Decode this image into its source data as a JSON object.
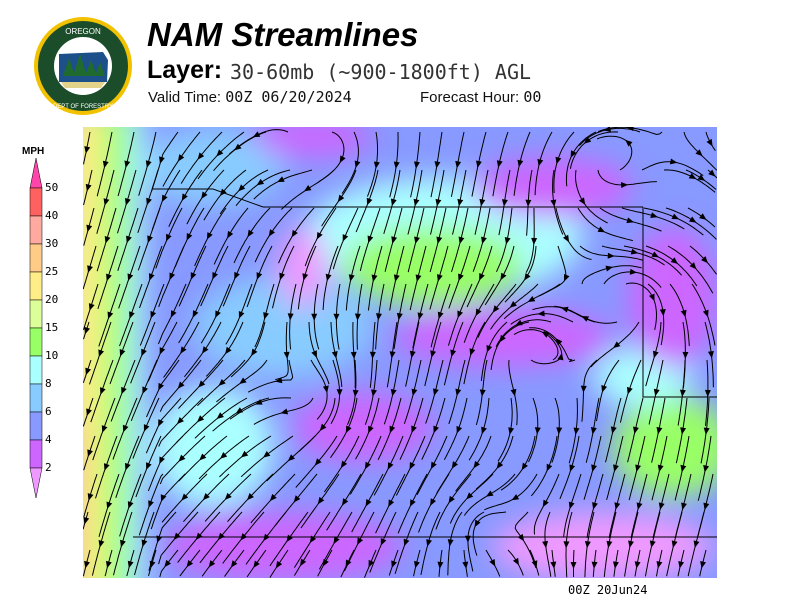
{
  "header": {
    "logo_text": "OREGON DEPARTMENT OF FORESTRY",
    "title": "NAM Streamlines",
    "layer_label": "Layer:",
    "layer_value": "30-60mb (~900-1800ft) AGL",
    "valid_label": "Valid Time:",
    "valid_value": "00Z 06/20/2024",
    "forecast_label": "Forecast Hour:",
    "forecast_value": "00"
  },
  "legend": {
    "title": "MPH",
    "ticks": [
      "50",
      "40",
      "30",
      "25",
      "20",
      "15",
      "10",
      "8",
      "6",
      "4",
      "2"
    ],
    "colors": [
      "#ff44aa",
      "#ff6060",
      "#ffaaa0",
      "#ffcc88",
      "#ffee88",
      "#ddff99",
      "#99ff66",
      "#aaffff",
      "#88ccff",
      "#8899ff",
      "#cc66ff",
      "#ee99ff"
    ]
  },
  "footer": {
    "timestamp": "00Z 20Jun24"
  }
}
